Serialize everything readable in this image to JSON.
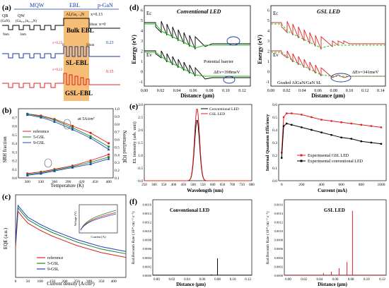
{
  "panel_a": {
    "label": "(a)",
    "top_labels": {
      "mqw": "MQW",
      "ebl": "EBL",
      "pgan": "p-GaN"
    },
    "layers": {
      "qb": "QB",
      "qb_mat": "(GaN)",
      "qw": "QW",
      "qw_mat": "(Ga₀.₈₁In₀.₁₉N)",
      "ebl_top": "AlₓGa₁₋ₓN"
    },
    "dims": {
      "d9": "9nm",
      "d3": "3nm",
      "d30": "30nm",
      "x0": "0",
      "x50": "50nm"
    },
    "x_vals": {
      "x013": "x=0.13",
      "x0": "x=0",
      "x023a": "x=0.23",
      "v023a": "0.23",
      "x023b": "x=0.23",
      "v023b": "0.23",
      "x023c": "x=0.23",
      "v015": "0.15"
    },
    "structures": {
      "bulk": "Bulk EBL",
      "sl": "SL-EBL",
      "gsl": "GSL-EBL"
    }
  },
  "panel_b": {
    "label": "(b)",
    "ylabel_left": "SRH fraction",
    "ylabel_right": "Normalized IQE",
    "xlabel": "Temperature (K)",
    "annotation": "at 5A/cm²",
    "legend": [
      "reference",
      "5-GSL",
      "9-GSL"
    ],
    "chart_data": {
      "type": "line",
      "x": [
        300,
        330,
        360,
        400,
        440,
        480
      ],
      "xlim": [
        280,
        490
      ],
      "ylim_left": [
        0.0,
        0.8
      ],
      "ylim_right": [
        0.1,
        1.0
      ],
      "xticks": [
        "300",
        "330",
        "360",
        "390",
        "420",
        "450",
        "480"
      ],
      "yticks_left": [
        "0.0",
        "0.1",
        "0.2",
        "0.3",
        "0.4",
        "0.5",
        "0.6",
        "0.7"
      ],
      "yticks_right": [
        "0.1",
        "0.2",
        "0.3",
        "0.4",
        "0.5",
        "0.6",
        "0.7",
        "0.8",
        "0.9",
        "1.0"
      ],
      "series": [
        {
          "name": "reference",
          "color": "#e02020",
          "axis": "left",
          "values": [
            0.74,
            0.72,
            0.68,
            0.6,
            0.52,
            0.4
          ]
        },
        {
          "name": "5-GSL",
          "color": "#1a8a2a",
          "axis": "left",
          "values": [
            0.74,
            0.71,
            0.67,
            0.58,
            0.48,
            0.36
          ]
        },
        {
          "name": "9-GSL",
          "color": "#2040c0",
          "axis": "left",
          "values": [
            0.73,
            0.7,
            0.65,
            0.56,
            0.46,
            0.33
          ]
        },
        {
          "name": "reference",
          "color": "#e02020",
          "axis": "left",
          "values": [
            0.05,
            0.07,
            0.1,
            0.14,
            0.2,
            0.27
          ]
        },
        {
          "name": "5-GSL",
          "color": "#1a8a2a",
          "axis": "left",
          "values": [
            0.04,
            0.06,
            0.09,
            0.13,
            0.18,
            0.24
          ]
        },
        {
          "name": "9-GSL",
          "color": "#2040c0",
          "axis": "left",
          "values": [
            0.03,
            0.05,
            0.08,
            0.12,
            0.16,
            0.22
          ]
        }
      ]
    }
  },
  "panel_c": {
    "label": "(c)",
    "ylabel": "EQE (a.u.)",
    "xlabel": "Current density (A/cm²)",
    "legend": [
      "reference",
      "5-GSL",
      "9-GSL"
    ],
    "inset": {
      "ylabel": "Voltage (V)",
      "xlabel": "Current (A)"
    },
    "chart_data": {
      "type": "line",
      "x": [
        0,
        10,
        25,
        50,
        100,
        150,
        200,
        250,
        300,
        350,
        400,
        450
      ],
      "xlim": [
        0,
        450
      ],
      "xticks": [
        "0",
        "50",
        "100",
        "150",
        "200",
        "250",
        "300",
        "350",
        "400"
      ],
      "series": [
        {
          "name": "reference",
          "color": "#e02020",
          "values": [
            5.5,
            8.6,
            8.2,
            7.6,
            7.0,
            6.5,
            6.1,
            5.7,
            5.4,
            5.1,
            4.9,
            4.7
          ]
        },
        {
          "name": "5-GSL",
          "color": "#1a8a2a",
          "values": [
            5.8,
            8.9,
            8.5,
            7.9,
            7.3,
            6.8,
            6.4,
            6.0,
            5.7,
            5.4,
            5.2,
            5.0
          ]
        },
        {
          "name": "9-GSL",
          "color": "#2040c0",
          "values": [
            6.0,
            9.1,
            8.7,
            8.1,
            7.5,
            7.0,
            6.6,
            6.2,
            5.9,
            5.6,
            5.4,
            5.2
          ]
        }
      ]
    }
  },
  "panel_d": {
    "label": "(d)",
    "left_title": "Conventional LED",
    "right_title": "GSL LED",
    "ylabel": "Energy (eV)",
    "xlabel": "Distance (μm)",
    "ec": "Ec",
    "ev": "Ev",
    "barrier": "Potential barrier",
    "dev_left": "ΔEv=398meV",
    "dev_right": "ΔEv=341meV",
    "graded": "Graded AlGaN/GaN SL",
    "xticks_left": [
      "0.00",
      "0.02",
      "0.04",
      "0.06",
      "0.08",
      "0.10",
      "0.12"
    ],
    "xticks_right": [
      "0.00",
      "0.02",
      "0.04",
      "0.06",
      "0.08",
      "0.10",
      "0.12",
      "0.14"
    ],
    "yticks": [
      "-1",
      "0",
      "1",
      "2",
      "3",
      "4",
      "5",
      "6"
    ]
  },
  "panel_e": {
    "label": "(e)",
    "left": {
      "ylabel": "EL intensity (arb. unit)",
      "xlabel": "Wavelength (nm)",
      "legend": [
        "Conventional LED",
        "GSL LED"
      ],
      "xticks": [
        "250",
        "300",
        "350",
        "400",
        "450",
        "500",
        "550",
        "600",
        "650",
        "700",
        "750",
        "800"
      ],
      "yticks": [
        "0.0",
        "0.5",
        "1.0",
        "1.5",
        "2.0",
        "2.5",
        "3.0"
      ],
      "chart_data": {
        "type": "line",
        "peak_nm": 520,
        "series": [
          {
            "name": "Conventional LED",
            "color": "#000000",
            "peak": 2.4
          },
          {
            "name": "GSL LED",
            "color": "#e02020",
            "peak": 2.85
          }
        ]
      }
    },
    "right": {
      "ylabel": "Internal Quantum Efficiency",
      "xlabel": "Current (mA)",
      "legend": [
        "Experimental GSL LED",
        "Experimental conventional LED"
      ],
      "xticks": [
        "0",
        "200",
        "400",
        "600",
        "800",
        "1000"
      ],
      "yticks": [
        "0.0",
        "0.1",
        "0.2",
        "0.3",
        "0.4",
        "0.5",
        "0.6"
      ],
      "chart_data": {
        "type": "line",
        "x": [
          0,
          20,
          50,
          100,
          200,
          300,
          400,
          500,
          600,
          700,
          800,
          900,
          1000
        ],
        "series": [
          {
            "name": "Experimental GSL LED",
            "color": "#e02020",
            "values": [
              0.22,
              0.5,
              0.53,
              0.53,
              0.52,
              0.5,
              0.48,
              0.47,
              0.46,
              0.45,
              0.44,
              0.43,
              0.42
            ]
          },
          {
            "name": "Experimental conventional LED",
            "color": "#000000",
            "values": [
              0.18,
              0.43,
              0.45,
              0.44,
              0.42,
              0.4,
              0.38,
              0.36,
              0.34,
              0.33,
              0.31,
              0.3,
              0.29
            ]
          }
        ]
      }
    }
  },
  "panel_f": {
    "label": "(f)",
    "left_title": "Conventional LED",
    "right_title": "GSL LED",
    "ylabel": "Rad.Recomb Rate (10²⁸ cm⁻³ s⁻¹)",
    "xlabel": "Distance (μm)",
    "yticks": [
      "0.0000",
      "0.0002",
      "0.0004",
      "0.0006",
      "0.0008",
      "0.0010",
      "0.0012",
      "0.0014",
      "0.0016"
    ],
    "xticks": [
      "0.00",
      "0.02",
      "0.04",
      "0.06",
      "0.08",
      "0.10",
      "0.12"
    ]
  }
}
